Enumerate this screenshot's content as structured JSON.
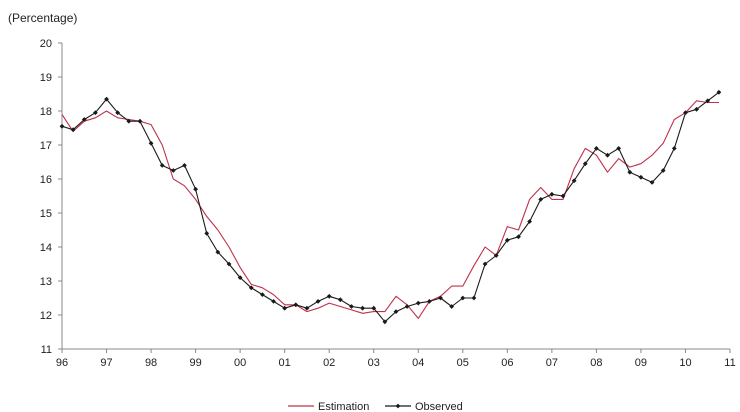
{
  "chart_data": {
    "type": "line",
    "title": "",
    "ylabel": "(Percentage)",
    "xlabel": "",
    "ylim": [
      11,
      20
    ],
    "yticks": [
      11,
      12,
      13,
      14,
      15,
      16,
      17,
      18,
      19,
      20
    ],
    "x_range": [
      1996,
      2011
    ],
    "xticks": [
      {
        "label": "96",
        "value": 1996
      },
      {
        "label": "97",
        "value": 1997
      },
      {
        "label": "98",
        "value": 1998
      },
      {
        "label": "99",
        "value": 1999
      },
      {
        "label": "00",
        "value": 2000
      },
      {
        "label": "01",
        "value": 2001
      },
      {
        "label": "02",
        "value": 2002
      },
      {
        "label": "03",
        "value": 2003
      },
      {
        "label": "04",
        "value": 2004
      },
      {
        "label": "05",
        "value": 2005
      },
      {
        "label": "06",
        "value": 2006
      },
      {
        "label": "07",
        "value": 2007
      },
      {
        "label": "08",
        "value": 2008
      },
      {
        "label": "09",
        "value": 2009
      },
      {
        "label": "10",
        "value": 2010
      },
      {
        "label": "11",
        "value": 2011
      }
    ],
    "grid": false,
    "legend": "bottom-center",
    "colors": {
      "estimation": "#c0304a",
      "observed": "#1a1a1a",
      "axis": "#888888"
    },
    "series": [
      {
        "name": "Estimation",
        "marker": "none",
        "x": [
          1996.0,
          1996.25,
          1996.5,
          1996.75,
          1997.0,
          1997.25,
          1997.5,
          1997.75,
          1998.0,
          1998.25,
          1998.5,
          1998.75,
          1999.0,
          1999.25,
          1999.5,
          1999.75,
          2000.0,
          2000.25,
          2000.5,
          2000.75,
          2001.0,
          2001.25,
          2001.5,
          2001.75,
          2002.0,
          2002.25,
          2002.5,
          2002.75,
          2003.0,
          2003.25,
          2003.5,
          2003.75,
          2004.0,
          2004.25,
          2004.5,
          2004.75,
          2005.0,
          2005.25,
          2005.5,
          2005.75,
          2006.0,
          2006.25,
          2006.5,
          2006.75,
          2007.0,
          2007.25,
          2007.5,
          2007.75,
          2008.0,
          2008.25,
          2008.5,
          2008.75,
          2009.0,
          2009.25,
          2009.5,
          2009.75,
          2010.0,
          2010.25,
          2010.5,
          2010.75
        ],
        "y": [
          17.9,
          17.4,
          17.7,
          17.8,
          18.0,
          17.8,
          17.75,
          17.7,
          17.6,
          17.0,
          16.0,
          15.8,
          15.4,
          14.9,
          14.5,
          14.0,
          13.4,
          12.9,
          12.8,
          12.6,
          12.3,
          12.3,
          12.1,
          12.2,
          12.35,
          12.25,
          12.15,
          12.05,
          12.1,
          12.1,
          12.55,
          12.3,
          11.9,
          12.4,
          12.55,
          12.85,
          12.85,
          13.45,
          14.0,
          13.75,
          14.6,
          14.5,
          15.4,
          15.75,
          15.4,
          15.4,
          16.3,
          16.9,
          16.7,
          16.2,
          16.6,
          16.35,
          16.45,
          16.7,
          17.05,
          17.75,
          17.95,
          18.3,
          18.25,
          18.25
        ]
      },
      {
        "name": "Observed",
        "marker": "diamond",
        "x": [
          1996.0,
          1996.25,
          1996.5,
          1996.75,
          1997.0,
          1997.25,
          1997.5,
          1997.75,
          1998.0,
          1998.25,
          1998.5,
          1998.75,
          1999.0,
          1999.25,
          1999.5,
          1999.75,
          2000.0,
          2000.25,
          2000.5,
          2000.75,
          2001.0,
          2001.25,
          2001.5,
          2001.75,
          2002.0,
          2002.25,
          2002.5,
          2002.75,
          2003.0,
          2003.25,
          2003.5,
          2003.75,
          2004.0,
          2004.25,
          2004.5,
          2004.75,
          2005.0,
          2005.25,
          2005.5,
          2005.75,
          2006.0,
          2006.25,
          2006.5,
          2006.75,
          2007.0,
          2007.25,
          2007.5,
          2007.75,
          2008.0,
          2008.25,
          2008.5,
          2008.75,
          2009.0,
          2009.25,
          2009.5,
          2009.75,
          2010.0,
          2010.25,
          2010.5,
          2010.75
        ],
        "y": [
          17.55,
          17.45,
          17.75,
          17.95,
          18.35,
          17.95,
          17.7,
          17.7,
          17.05,
          16.4,
          16.25,
          16.4,
          15.7,
          14.4,
          13.85,
          13.5,
          13.1,
          12.8,
          12.6,
          12.4,
          12.2,
          12.3,
          12.2,
          12.4,
          12.55,
          12.45,
          12.25,
          12.2,
          12.2,
          11.8,
          12.1,
          12.25,
          12.35,
          12.4,
          12.5,
          12.25,
          12.5,
          12.5,
          13.5,
          13.75,
          14.2,
          14.3,
          14.75,
          15.4,
          15.55,
          15.5,
          15.95,
          16.45,
          16.9,
          16.7,
          16.9,
          16.2,
          16.05,
          15.9,
          16.25,
          16.9,
          17.95,
          18.05,
          18.3,
          18.55
        ]
      }
    ]
  }
}
